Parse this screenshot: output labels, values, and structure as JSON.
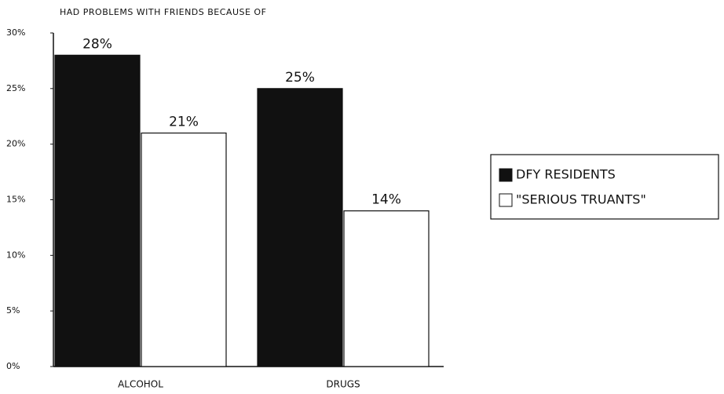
{
  "chart_data": {
    "type": "bar",
    "title": "HAD PROBLEMS WITH FRIENDS BECAUSE OF",
    "categories": [
      "ALCOHOL",
      "DRUGS"
    ],
    "series": [
      {
        "name": "DFY RESIDENTS",
        "color": "#111111",
        "values": [
          28,
          25
        ],
        "value_labels": [
          "28%",
          "25%"
        ]
      },
      {
        "name": "\"SERIOUS TRUANTS\"",
        "color": "#ffffff",
        "values": [
          21,
          14
        ],
        "value_labels": [
          "21%",
          "14%"
        ]
      }
    ],
    "ylim": [
      0,
      30
    ],
    "yticks": [
      {
        "value": 0,
        "label": "0%"
      },
      {
        "value": 5,
        "label": "5%"
      },
      {
        "value": 10,
        "label": "10%"
      },
      {
        "value": 15,
        "label": "15%"
      },
      {
        "value": 20,
        "label": "20%"
      },
      {
        "value": 25,
        "label": "25%"
      },
      {
        "value": 30,
        "label": "30%"
      }
    ],
    "legend": "right",
    "grid": false
  }
}
